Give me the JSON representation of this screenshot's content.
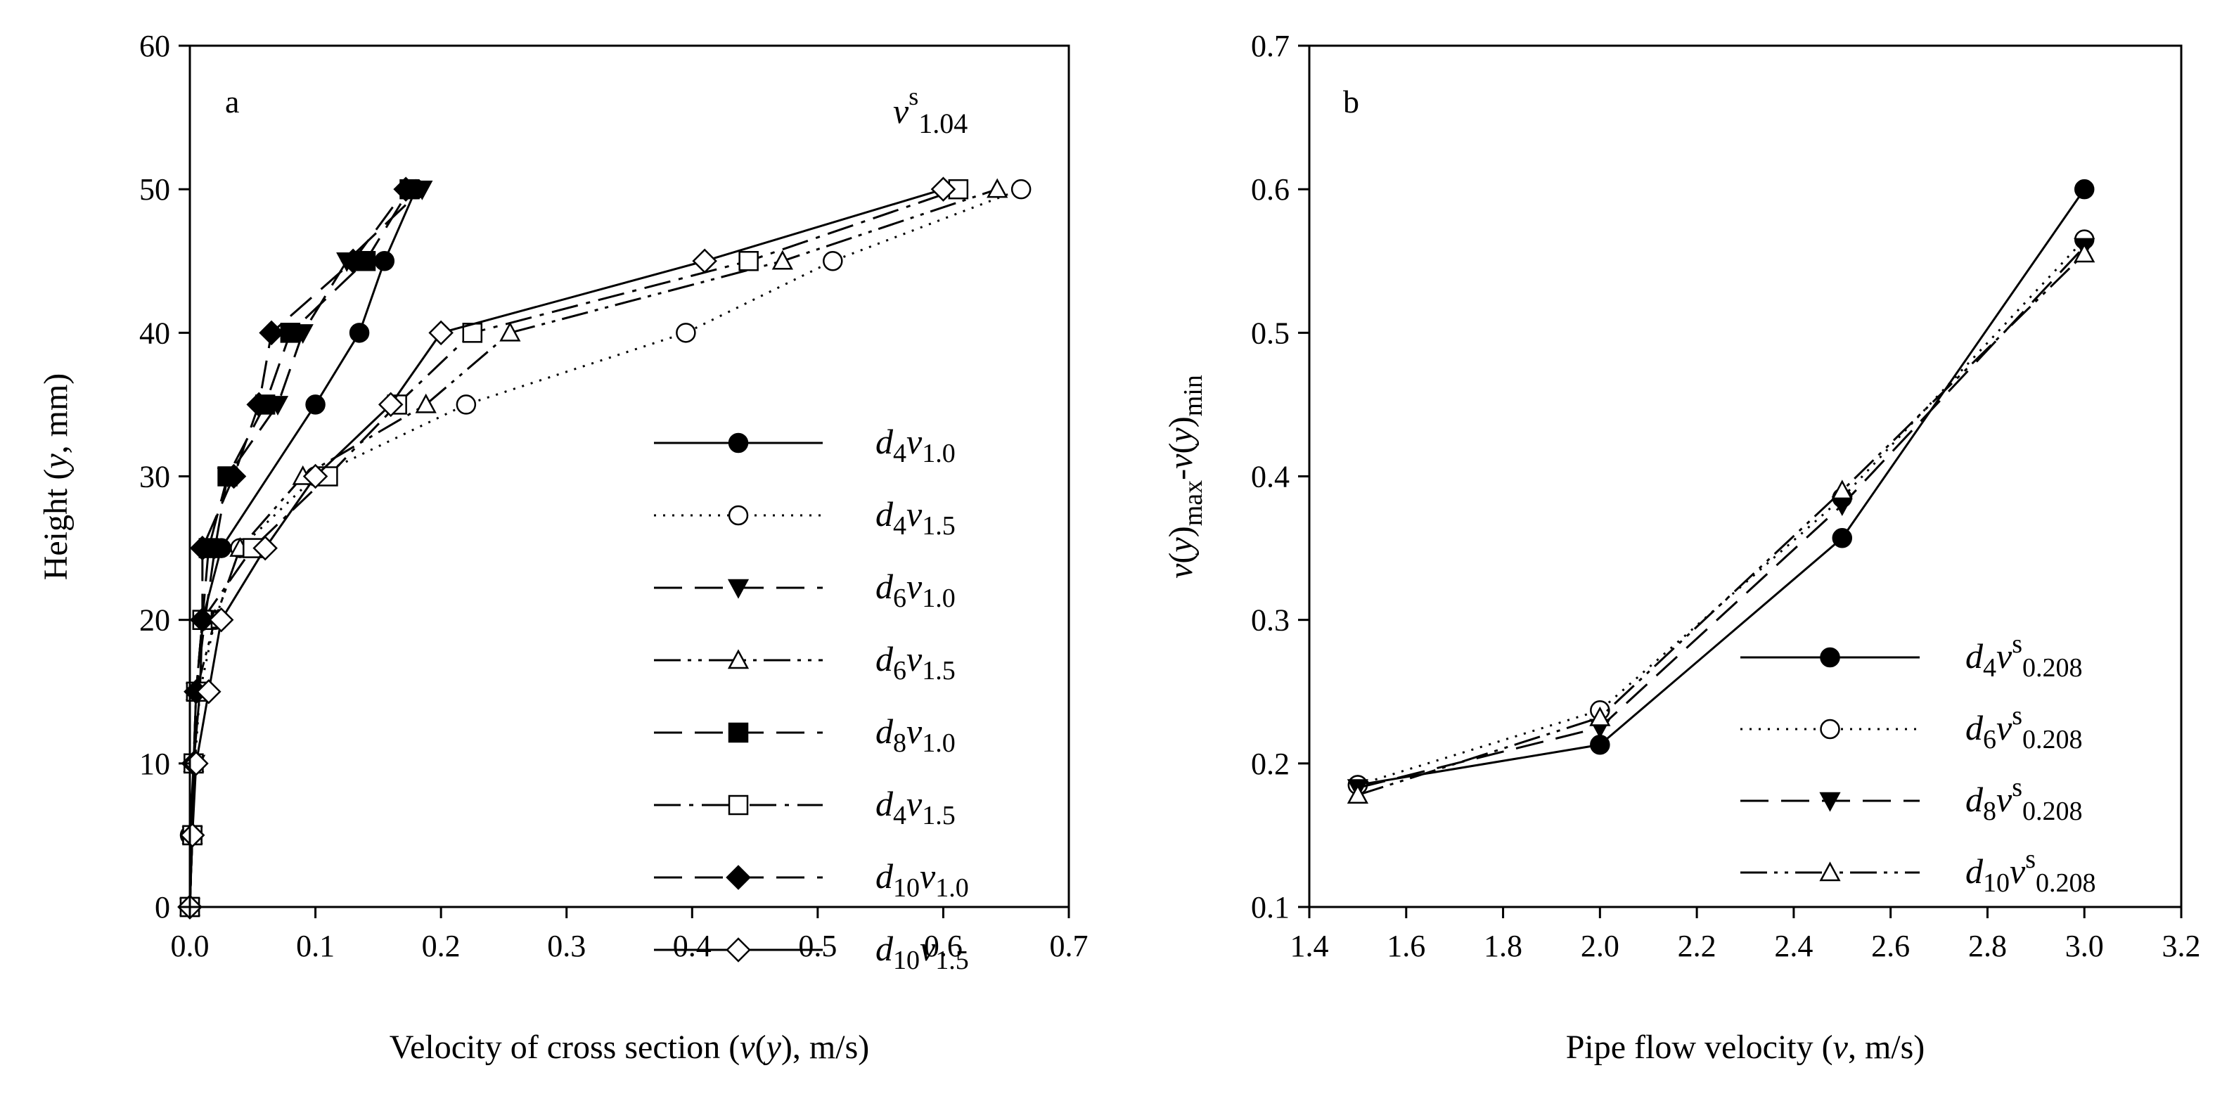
{
  "chart_data": [
    {
      "type": "line",
      "panel_label": "a",
      "annotation": {
        "base": "v",
        "sup": "s",
        "sub": "1.04"
      },
      "xlabel": {
        "pre": "Velocity of cross section (",
        "v": "v",
        "open": "(",
        "y": "y",
        "post": "), m/s)"
      },
      "ylabel": {
        "pre": "Height (",
        "var": "y",
        "post": ", mm)"
      },
      "xlim": [
        0,
        0.7
      ],
      "ylim": [
        0,
        60
      ],
      "xticks": [
        "0.0",
        "0.1",
        "0.2",
        "0.3",
        "0.4",
        "0.5",
        "0.6",
        "0.7"
      ],
      "yticks": [
        "0",
        "10",
        "20",
        "30",
        "40",
        "50",
        "60"
      ],
      "legend_position": "bottom-right",
      "series": [
        {
          "name": "d4v1.0",
          "label": {
            "d": "d",
            "dsub": "4",
            "v": "v",
            "vsub": "1.0"
          },
          "marker": "circle",
          "filled": true,
          "dash": "solid",
          "x": [
            0,
            0,
            0.003,
            0.008,
            0.01,
            0.025,
            0.1,
            0.135,
            0.155,
            0.18
          ],
          "y": [
            0,
            5,
            10,
            15,
            20,
            25,
            35,
            40,
            45,
            50
          ]
        },
        {
          "name": "d4v1.5",
          "label": {
            "d": "d",
            "dsub": "4",
            "v": "v",
            "vsub": "1.5"
          },
          "marker": "circle",
          "filled": false,
          "dash": "dot",
          "x": [
            0,
            0.002,
            0.004,
            0.008,
            0.02,
            0.04,
            0.1,
            0.22,
            0.395,
            0.512,
            0.662
          ],
          "y": [
            0,
            5,
            10,
            15,
            20,
            25,
            30,
            35,
            40,
            45,
            50
          ]
        },
        {
          "name": "d6v1.0",
          "label": {
            "d": "d",
            "dsub": "6",
            "v": "v",
            "vsub": "1.0"
          },
          "marker": "triangle-down",
          "filled": true,
          "dash": "longdash",
          "x": [
            0,
            0.002,
            0.004,
            0.005,
            0.012,
            0.02,
            0.03,
            0.07,
            0.09,
            0.125,
            0.185
          ],
          "y": [
            0,
            5,
            10,
            15,
            20,
            25,
            30,
            35,
            40,
            45,
            50
          ]
        },
        {
          "name": "d6v1.5",
          "label": {
            "d": "d",
            "dsub": "6",
            "v": "v",
            "vsub": "1.5"
          },
          "marker": "triangle-up",
          "filled": false,
          "dash": "dashdotdot",
          "x": [
            0,
            0.002,
            0.003,
            0.005,
            0.02,
            0.04,
            0.09,
            0.188,
            0.255,
            0.472,
            0.643
          ],
          "y": [
            0,
            5,
            10,
            15,
            20,
            25,
            30,
            35,
            40,
            45,
            50
          ]
        },
        {
          "name": "d8v1.0",
          "label": {
            "d": "d",
            "dsub": "8",
            "v": "v",
            "vsub": "1.0"
          },
          "marker": "square",
          "filled": true,
          "dash": "longdash",
          "x": [
            0,
            0.002,
            0.003,
            0.005,
            0.01,
            0.015,
            0.03,
            0.06,
            0.08,
            0.14,
            0.175
          ],
          "y": [
            0,
            5,
            10,
            15,
            20,
            25,
            30,
            35,
            40,
            45,
            50
          ]
        },
        {
          "name": "d4v1.5",
          "label": {
            "d": "d",
            "dsub": "4",
            "v": "v",
            "vsub": "1.5"
          },
          "marker": "square",
          "filled": false,
          "dash": "dashdot",
          "x": [
            0,
            0.002,
            0.003,
            0.005,
            0.01,
            0.05,
            0.11,
            0.165,
            0.225,
            0.445,
            0.612
          ],
          "y": [
            0,
            5,
            10,
            15,
            20,
            25,
            30,
            35,
            40,
            45,
            50
          ]
        },
        {
          "name": "d10v1.0",
          "label": {
            "d": "d",
            "dsub": "10",
            "v": "v",
            "vsub": "1.0"
          },
          "marker": "diamond",
          "filled": true,
          "dash": "longdash",
          "x": [
            0,
            0.002,
            0.003,
            0.005,
            0.01,
            0.01,
            0.035,
            0.055,
            0.065,
            0.13,
            0.172
          ],
          "y": [
            0,
            5,
            10,
            15,
            20,
            25,
            30,
            35,
            40,
            45,
            50
          ]
        },
        {
          "name": "d10v1.5",
          "label": {
            "d": "d",
            "dsub": "10",
            "v": "v",
            "vsub": "1.5"
          },
          "marker": "diamond",
          "filled": false,
          "dash": "solid",
          "x": [
            0,
            0.002,
            0.005,
            0.015,
            0.025,
            0.06,
            0.1,
            0.16,
            0.2,
            0.41,
            0.6
          ],
          "y": [
            0,
            5,
            10,
            15,
            20,
            25,
            30,
            35,
            40,
            45,
            50
          ]
        }
      ]
    },
    {
      "type": "line",
      "panel_label": "b",
      "xlabel": {
        "pre": "Pipe flow velocity (",
        "var": "v",
        "post": ", m/s)"
      },
      "ylabel": {
        "v": "v",
        "open": "(",
        "y": "y",
        "close": ")",
        "max": "max",
        "dash": "-",
        "v2": "v",
        "open2": "(",
        "y2": "y",
        "close2": ")",
        "min": "min"
      },
      "xlim": [
        1.4,
        3.2
      ],
      "ylim": [
        0.1,
        0.7
      ],
      "xticks": [
        "1.4",
        "1.6",
        "1.8",
        "2.0",
        "2.2",
        "2.4",
        "2.6",
        "2.8",
        "3.0",
        "3.2"
      ],
      "yticks": [
        "0.1",
        "0.2",
        "0.3",
        "0.4",
        "0.5",
        "0.6",
        "0.7"
      ],
      "legend_position": "bottom-right",
      "series": [
        {
          "name": "d4vs0.208",
          "label": {
            "d": "d",
            "dsub": "4",
            "v": "v",
            "vsup": "s",
            "vsub": "0.208"
          },
          "marker": "circle",
          "filled": true,
          "dash": "solid",
          "x": [
            1.5,
            2.0,
            2.5,
            3.0
          ],
          "y": [
            0.185,
            0.213,
            0.357,
            0.6
          ]
        },
        {
          "name": "d6vs0.208",
          "label": {
            "d": "d",
            "dsub": "6",
            "v": "v",
            "vsup": "s",
            "vsub": "0.208"
          },
          "marker": "circle",
          "filled": false,
          "dash": "dot",
          "x": [
            1.5,
            2.0,
            2.5,
            3.0
          ],
          "y": [
            0.185,
            0.237,
            0.385,
            0.565
          ]
        },
        {
          "name": "d8vs0.208",
          "label": {
            "d": "d",
            "dsub": "8",
            "v": "v",
            "vsup": "s",
            "vsub": "0.208"
          },
          "marker": "triangle-down",
          "filled": true,
          "dash": "longdash",
          "x": [
            1.5,
            2.0,
            2.5,
            3.0
          ],
          "y": [
            0.183,
            0.225,
            0.38,
            0.56
          ]
        },
        {
          "name": "d10vs0.208",
          "label": {
            "d": "d",
            "dsub": "10",
            "v": "v",
            "vsup": "s",
            "vsub": "0.208"
          },
          "marker": "triangle-up",
          "filled": false,
          "dash": "dashdotdot",
          "x": [
            1.5,
            2.0,
            2.5,
            3.0
          ],
          "y": [
            0.178,
            0.232,
            0.39,
            0.555
          ]
        }
      ]
    }
  ]
}
